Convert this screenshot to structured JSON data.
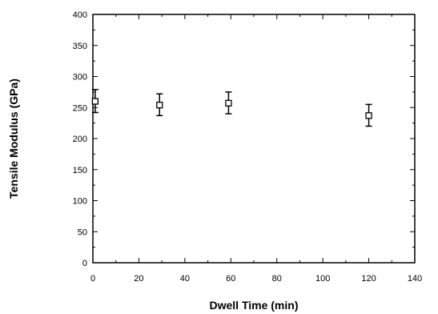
{
  "chart_data": {
    "type": "scatter",
    "title": "",
    "xlabel": "Dwell Time (min)",
    "ylabel": "Tensile Modulus (GPa)",
    "xlim": [
      0,
      140
    ],
    "ylim": [
      0,
      400
    ],
    "x_ticks": [
      0,
      20,
      40,
      60,
      80,
      100,
      120,
      140
    ],
    "y_ticks": [
      0,
      50,
      100,
      150,
      200,
      250,
      300,
      350,
      400
    ],
    "grid": false,
    "legend": "none",
    "marker": "open-square",
    "series": [
      {
        "points": [
          {
            "x": 1,
            "y": 260,
            "y_low": 242,
            "y_high": 279
          },
          {
            "x": 29,
            "y": 254,
            "y_low": 237,
            "y_high": 272
          },
          {
            "x": 59,
            "y": 257,
            "y_low": 240,
            "y_high": 275
          },
          {
            "x": 120,
            "y": 237,
            "y_low": 220,
            "y_high": 255
          }
        ]
      }
    ],
    "colors": {
      "ink": "#000000",
      "background": "#ffffff"
    }
  }
}
